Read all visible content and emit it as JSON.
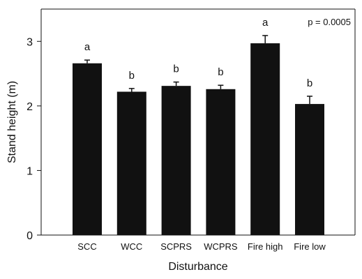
{
  "chart_data": {
    "type": "bar",
    "categories": [
      "SCC",
      "WCC",
      "SCPRS",
      "WCPRS",
      "Fire high",
      "Fire low"
    ],
    "values": [
      2.66,
      2.22,
      2.31,
      2.26,
      2.97,
      2.03
    ],
    "errors": [
      0.05,
      0.05,
      0.06,
      0.06,
      0.12,
      0.12
    ],
    "group_letters": [
      "a",
      "b",
      "b",
      "b",
      "a",
      "b"
    ],
    "annotation": "p = 0.0005",
    "xlabel": "Disturbance",
    "ylabel": "Stand height (m)",
    "ylim": [
      0,
      3.5
    ],
    "yticks": [
      0,
      1,
      2,
      3
    ],
    "grid": false,
    "bar_color": "#111111"
  }
}
